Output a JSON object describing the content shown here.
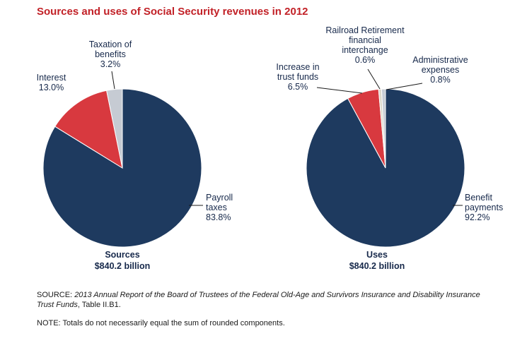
{
  "title": "Sources and uses of Social Security revenues in 2012",
  "colors": {
    "navy": "#1e3a5f",
    "red": "#d8393f",
    "gray": "#c6cbd3",
    "tan": "#ddd8ca",
    "title_red": "#c22127",
    "text_navy": "#17294b"
  },
  "chart_data": [
    {
      "type": "pie",
      "name": "Sources",
      "total_label": "$840.2 billion",
      "start_angle_deg": 0,
      "direction": "clockwise",
      "slices": [
        {
          "label": "Payroll taxes",
          "pct_label": "83.8%",
          "value": 83.8,
          "color_key": "navy"
        },
        {
          "label": "Interest",
          "pct_label": "13.0%",
          "value": 13.0,
          "color_key": "red"
        },
        {
          "label": "Taxation of benefits",
          "pct_label": "3.2%",
          "value": 3.2,
          "color_key": "gray"
        }
      ]
    },
    {
      "type": "pie",
      "name": "Uses",
      "total_label": "$840.2 billion",
      "start_angle_deg": 0,
      "direction": "clockwise",
      "slices": [
        {
          "label": "Benefit payments",
          "pct_label": "92.2%",
          "value": 92.2,
          "color_key": "navy"
        },
        {
          "label": "Increase in trust funds",
          "pct_label": "6.5%",
          "value": 6.5,
          "color_key": "red"
        },
        {
          "label": "Railroad Retirement financial interchange",
          "pct_label": "0.6%",
          "value": 0.6,
          "color_key": "tan"
        },
        {
          "label": "Administrative expenses",
          "pct_label": "0.8%",
          "value": 0.8,
          "color_key": "gray"
        }
      ]
    }
  ],
  "labels": {
    "taxation": "Taxation of\nbenefits\n3.2%",
    "interest": "Interest\n13.0%",
    "payroll": "Payroll\ntaxes\n83.8%",
    "railroad": "Railroad Retirement\nfinancial\ninterchange\n0.6%",
    "admin": "Administrative\nexpenses\n0.8%",
    "increase": "Increase in\ntrust funds\n6.5%",
    "benefit": "Benefit\npayments\n92.2%",
    "sources_caption": "Sources\n$840.2 billion",
    "uses_caption": "Uses\n$840.2 billion"
  },
  "footer": {
    "source_prefix": "SOURCE: ",
    "source_italic": "2013 Annual Report of the Board of Trustees of the Federal Old-Age and Survivors Insurance and Disability Insurance Trust Funds",
    "source_suffix": ", Table II.B1.",
    "note": "NOTE: Totals do not necessarily equal the sum of rounded components."
  }
}
